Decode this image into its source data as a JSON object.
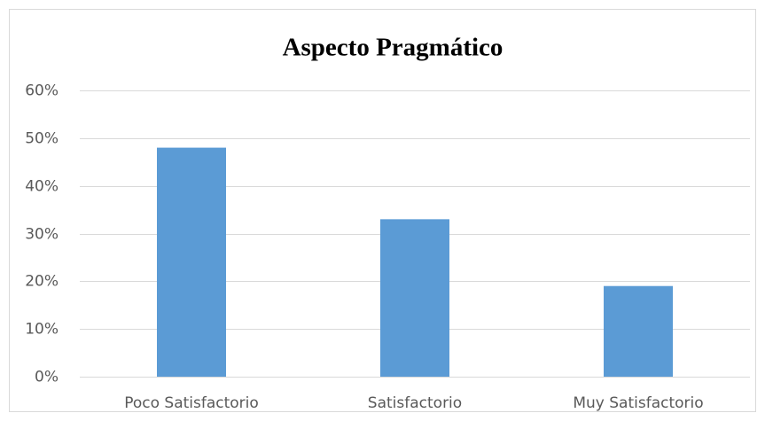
{
  "chart_data": {
    "type": "bar",
    "title": "Aspecto Pragmático",
    "categories": [
      "Poco Satisfactorio",
      "Satisfactorio",
      "Muy Satisfactorio"
    ],
    "values": [
      48,
      33,
      19
    ],
    "color": "#5b9bd5",
    "ylim": [
      0,
      60
    ],
    "yticks": [
      {
        "value": 0,
        "label": "0%"
      },
      {
        "value": 10,
        "label": "10%"
      },
      {
        "value": 20,
        "label": "20%"
      },
      {
        "value": 30,
        "label": "30%"
      },
      {
        "value": 40,
        "label": "40%"
      },
      {
        "value": 50,
        "label": "50%"
      },
      {
        "value": 60,
        "label": "60%"
      }
    ],
    "grid": true
  }
}
